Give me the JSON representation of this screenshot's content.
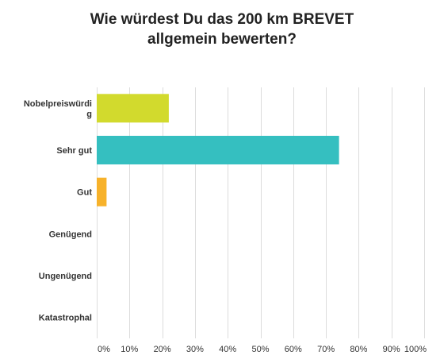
{
  "chart_data": {
    "type": "bar",
    "orientation": "horizontal",
    "title_lines": [
      "Wie würdest Du das 200 km BREVET",
      "allgemein bewerten?"
    ],
    "categories": [
      {
        "label_lines": [
          "Nobelpreiswürdi",
          "g"
        ],
        "value": 22
      },
      {
        "label_lines": [
          "Sehr gut"
        ],
        "value": 74
      },
      {
        "label_lines": [
          "Gut"
        ],
        "value": 3
      },
      {
        "label_lines": [
          "Genügend"
        ],
        "value": 0
      },
      {
        "label_lines": [
          "Ungenügend"
        ],
        "value": 0
      },
      {
        "label_lines": [
          "Katastrophal"
        ],
        "value": 0
      }
    ],
    "colors": [
      "#d2da2d",
      "#35bfc0",
      "#f7b22b",
      "#e3453b",
      "#7a5aa8",
      "#2f6db3"
    ],
    "xlim": [
      0,
      100
    ],
    "ticks": [
      "0%",
      "10%",
      "20%",
      "30%",
      "40%",
      "50%",
      "60%",
      "70%",
      "80%",
      "90%",
      "100%"
    ],
    "grid": true,
    "grid_color": "#dcdcdc"
  }
}
